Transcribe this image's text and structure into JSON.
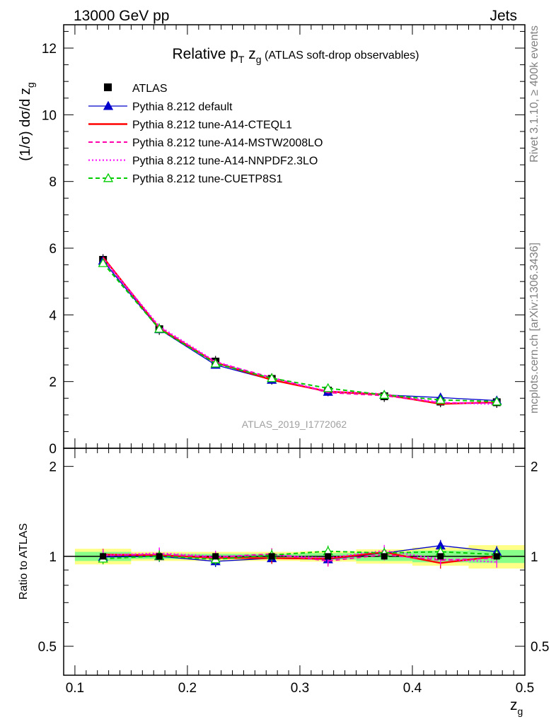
{
  "header": {
    "left": "13000 GeV pp",
    "right": "Jets"
  },
  "side": {
    "rivet": "Rivet 3.1.10, ≥ 400k events",
    "mcplots": "mcplots.cern.ch [arXiv:1306.3436]"
  },
  "chart_data": {
    "type": "line",
    "title": {
      "main": "Relative p",
      "sub_T": "T",
      "main2": " z",
      "sub_g": "g",
      "suffix": " (ATLAS soft-drop observables)"
    },
    "analysis_id": "ATLAS_2019_I1772062",
    "xlabel": {
      "main": "z",
      "sub": "g"
    },
    "ylabel": {
      "main": "(1/σ) dσ/d z",
      "sub": "g"
    },
    "ratio_ylabel": "Ratio to ATLAS",
    "xlim": [
      0.09,
      0.5
    ],
    "ylim_main": [
      0,
      12.7
    ],
    "ylim_ratio": [
      0.4,
      2.3
    ],
    "x_ticks": [
      "0.1",
      "0.2",
      "0.3",
      "0.4",
      "0.5"
    ],
    "y_ticks_main": [
      "0",
      "2",
      "4",
      "6",
      "8",
      "10",
      "12"
    ],
    "y_ticks_ratio": [
      "0.5",
      "1",
      "2"
    ],
    "x": [
      0.125,
      0.175,
      0.225,
      0.275,
      0.325,
      0.375,
      0.425,
      0.475
    ],
    "x_edges": [
      0.1,
      0.15,
      0.2,
      0.25,
      0.3,
      0.35,
      0.4,
      0.45,
      0.5
    ],
    "data": {
      "name": "ATLAS",
      "values": [
        5.65,
        3.57,
        2.6,
        2.08,
        1.73,
        1.56,
        1.4,
        1.38
      ],
      "band_inner": [
        0.035,
        0.02,
        0.02,
        0.02,
        0.025,
        0.035,
        0.045,
        0.05
      ],
      "band_outer": [
        0.06,
        0.035,
        0.035,
        0.035,
        0.04,
        0.055,
        0.07,
        0.09
      ]
    },
    "series": [
      {
        "name": "Pythia 8.212 default",
        "color": "#0000cc",
        "dash": "none",
        "marker": "triangle-filled",
        "values": [
          5.62,
          3.57,
          2.5,
          2.05,
          1.69,
          1.6,
          1.52,
          1.43
        ],
        "ratio": [
          0.995,
          1.0,
          0.962,
          0.985,
          0.977,
          1.026,
          1.086,
          1.036
        ]
      },
      {
        "name": "Pythia 8.212 tune-A14-CTEQL1",
        "color": "#ff0000",
        "dash": "none",
        "marker": "none",
        "values": [
          5.73,
          3.6,
          2.57,
          2.05,
          1.7,
          1.61,
          1.33,
          1.38
        ],
        "ratio": [
          1.014,
          1.008,
          0.988,
          0.986,
          0.983,
          1.032,
          0.95,
          1.0
        ]
      },
      {
        "name": "Pythia 8.212 tune-A14-MSTW2008LO",
        "color": "#ff00aa",
        "dash": "6,4",
        "marker": "none",
        "values": [
          5.68,
          3.63,
          2.58,
          2.12,
          1.67,
          1.58,
          1.36,
          1.36
        ],
        "ratio": [
          1.005,
          1.017,
          0.992,
          1.019,
          0.965,
          1.013,
          0.971,
          0.986
        ]
      },
      {
        "name": "Pythia 8.212 tune-A14-NNPDF2.3LO",
        "color": "#ff00ff",
        "dash": "2,3",
        "marker": "none",
        "values": [
          5.7,
          3.66,
          2.6,
          2.1,
          1.71,
          1.63,
          1.37,
          1.32
        ],
        "ratio": [
          1.009,
          1.025,
          1.0,
          1.01,
          0.988,
          1.045,
          0.979,
          0.957
        ]
      },
      {
        "name": "Pythia 8.212 tune-CUETP8S1",
        "color": "#00cc00",
        "dash": "6,4",
        "marker": "triangle-open",
        "values": [
          5.55,
          3.58,
          2.54,
          2.1,
          1.8,
          1.6,
          1.45,
          1.4
        ],
        "ratio": [
          0.982,
          1.003,
          0.977,
          1.01,
          1.04,
          1.026,
          1.036,
          1.014
        ]
      }
    ]
  }
}
